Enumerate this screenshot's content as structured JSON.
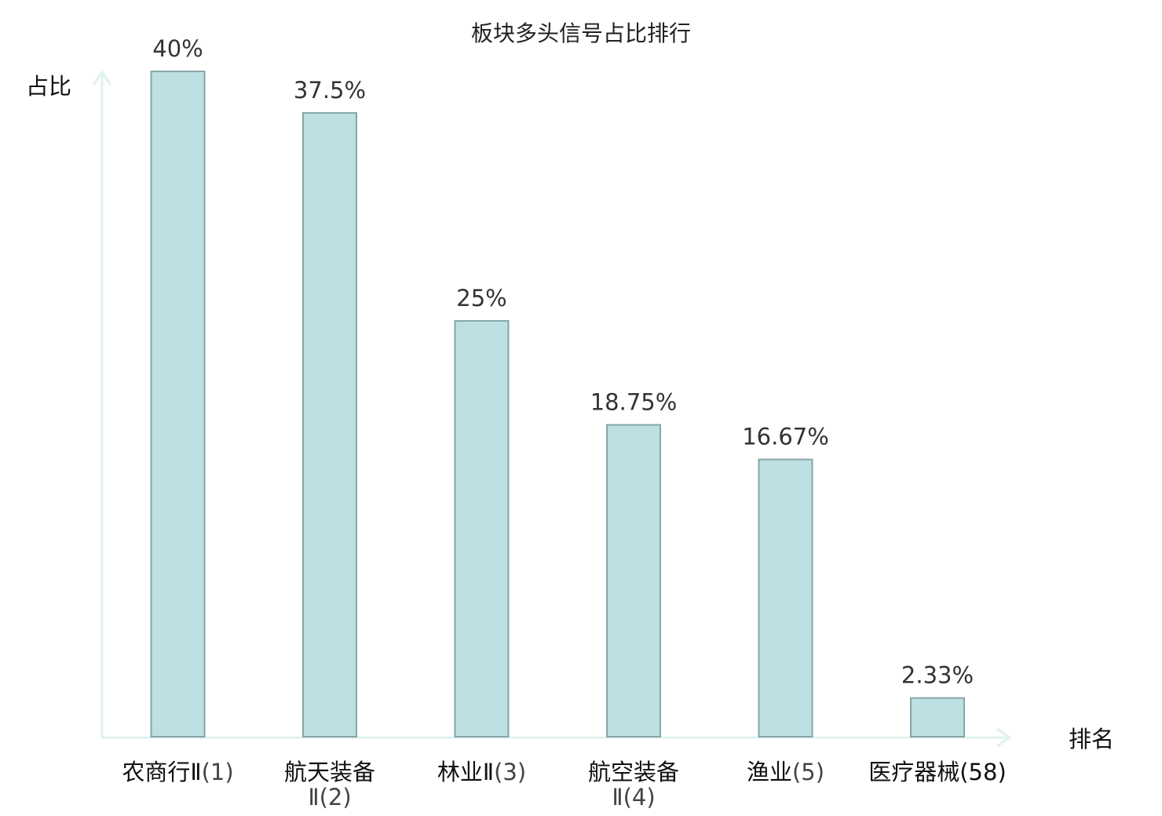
{
  "chart_data": {
    "type": "bar",
    "title": "板块多头信号占比排行",
    "ylabel": "占比",
    "xlabel": "排名",
    "ylim": [
      0,
      40
    ],
    "grid": false,
    "categories": [
      {
        "name": "农商行Ⅱ",
        "rank": "(1)"
      },
      {
        "name": "航天装备",
        "name2": "Ⅱ",
        "rank": "(2)"
      },
      {
        "name": "林业Ⅱ",
        "rank": "(3)"
      },
      {
        "name": "航空装备",
        "name2": "Ⅱ",
        "rank": "(4)"
      },
      {
        "name": "渔业",
        "rank": "(5)"
      },
      {
        "name": "医疗器械",
        "rank": "(58)",
        "highlight": true
      }
    ],
    "values": [
      40,
      37.5,
      25,
      18.75,
      16.67,
      2.33
    ],
    "value_labels": [
      "40%",
      "37.5%",
      "25%",
      "18.75%",
      "16.67%",
      "2.33%"
    ],
    "colors": {
      "bar_fill": "#bde0e2",
      "bar_stroke": "#86a6a8",
      "axis": "#e0f2ef",
      "highlight": "#e8141b"
    }
  }
}
